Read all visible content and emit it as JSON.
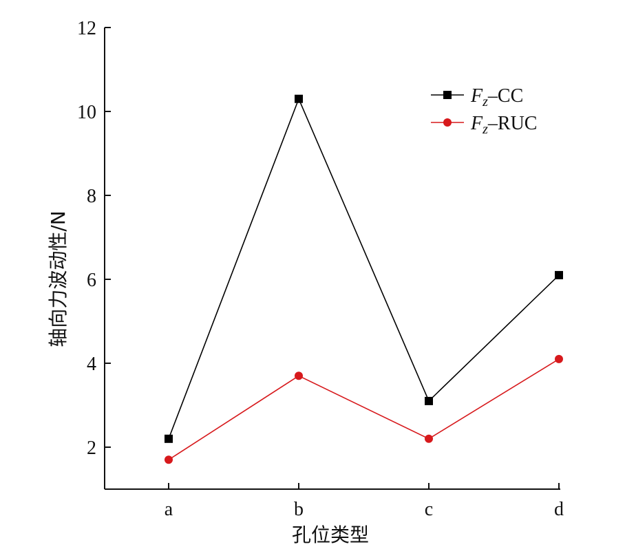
{
  "chart_data": {
    "type": "line",
    "categories": [
      "a",
      "b",
      "c",
      "d"
    ],
    "xlabel": "孔位类型",
    "ylabel": "轴向力波动性/N",
    "ylim": [
      1,
      12
    ],
    "yticks": [
      2,
      4,
      6,
      8,
      10,
      12
    ],
    "grid": false,
    "legend_position": "top-right",
    "series": [
      {
        "name": "Fz–CC",
        "legend_base": "F",
        "legend_sub": "z",
        "legend_suffix": "–CC",
        "values": [
          2.2,
          10.3,
          3.1,
          6.1
        ],
        "color": "#000000",
        "marker": "square"
      },
      {
        "name": "Fz–RUC",
        "legend_base": "F",
        "legend_sub": "z",
        "legend_suffix": "–RUC",
        "values": [
          1.7,
          3.7,
          2.2,
          4.1
        ],
        "color": "#d7191c",
        "marker": "circle"
      }
    ]
  }
}
